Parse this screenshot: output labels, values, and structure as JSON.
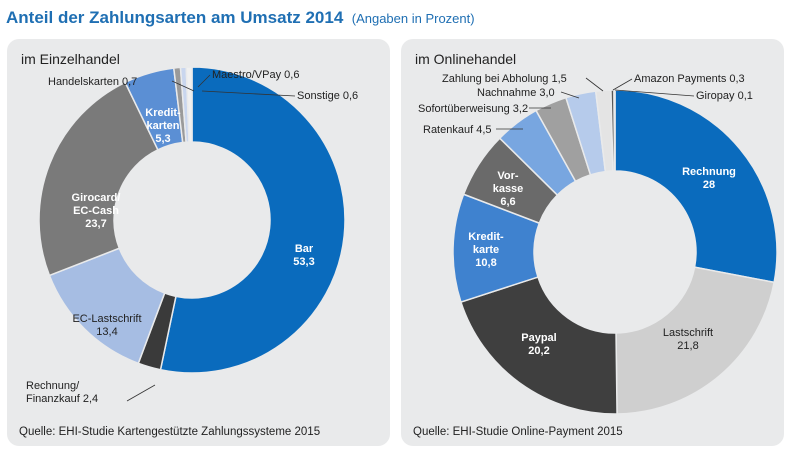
{
  "title": "Anteil der Zahlungsarten am Umsatz 2014",
  "subtitle": "(Angaben in Prozent)",
  "panels": {
    "left": {
      "label": "im Einzelhandel",
      "source": "Quelle: EHI-Studie Kartengestützte Zahlungssysteme 2015"
    },
    "right": {
      "label": "im Onlinehandel",
      "source": "Quelle: EHI-Studie Online-Payment 2015"
    }
  },
  "chart_data": [
    {
      "type": "pie",
      "title": "im Einzelhandel",
      "donut": true,
      "slices": [
        {
          "label": "Bar",
          "value": 53.3,
          "value_text": "53,3",
          "color": "#0a6bbd"
        },
        {
          "label": "Rechnung/ Finanzkauf",
          "value": 2.4,
          "value_text": "2,4",
          "color": "#3a3a3a"
        },
        {
          "label": "EC-Lastschrift",
          "value": 13.4,
          "value_text": "13,4",
          "color": "#a6bde3"
        },
        {
          "label": "Girocard/ EC-Cash",
          "value": 23.7,
          "value_text": "23,7",
          "color": "#7a7a7a"
        },
        {
          "label": "Kredit-karten",
          "value": 5.3,
          "value_text": "5,3",
          "color": "#5b8fd4"
        },
        {
          "label": "Handelskarten",
          "value": 0.7,
          "value_text": "0,7",
          "color": "#9a9a9a"
        },
        {
          "label": "Maestro/VPay",
          "value": 0.6,
          "value_text": "0,6",
          "color": "#c9d6ee"
        },
        {
          "label": "Sonstige",
          "value": 0.6,
          "value_text": "0,6",
          "color": "#f0f0f0"
        }
      ]
    },
    {
      "type": "pie",
      "title": "im Onlinehandel",
      "donut": true,
      "slices": [
        {
          "label": "Rechnung",
          "value": 28,
          "value_text": "28",
          "color": "#0a6bbd"
        },
        {
          "label": "Lastschrift",
          "value": 21.8,
          "value_text": "21,8",
          "color": "#cfcfcf"
        },
        {
          "label": "Paypal",
          "value": 20.2,
          "value_text": "20,2",
          "color": "#3f3f3f"
        },
        {
          "label": "Kredit-karte",
          "value": 10.8,
          "value_text": "10,8",
          "color": "#3f82cf"
        },
        {
          "label": "Vor-kasse",
          "value": 6.6,
          "value_text": "6,6",
          "color": "#6a6a6a"
        },
        {
          "label": "Ratenkauf",
          "value": 4.5,
          "value_text": "4,5",
          "color": "#78a6e0"
        },
        {
          "label": "Sofortüberweisung",
          "value": 3.2,
          "value_text": "3,2",
          "color": "#a0a0a0"
        },
        {
          "label": "Nachnahme",
          "value": 3.0,
          "value_text": "3,0",
          "color": "#b6cbeb"
        },
        {
          "label": "Zahlung bei Abholung",
          "value": 1.5,
          "value_text": "1,5",
          "color": "#e4e4e4"
        },
        {
          "label": "Amazon Payments",
          "value": 0.3,
          "value_text": "0,3",
          "color": "#555555"
        },
        {
          "label": "Giropay",
          "value": 0.1,
          "value_text": "0,1",
          "color": "#ffffff"
        }
      ]
    }
  ]
}
